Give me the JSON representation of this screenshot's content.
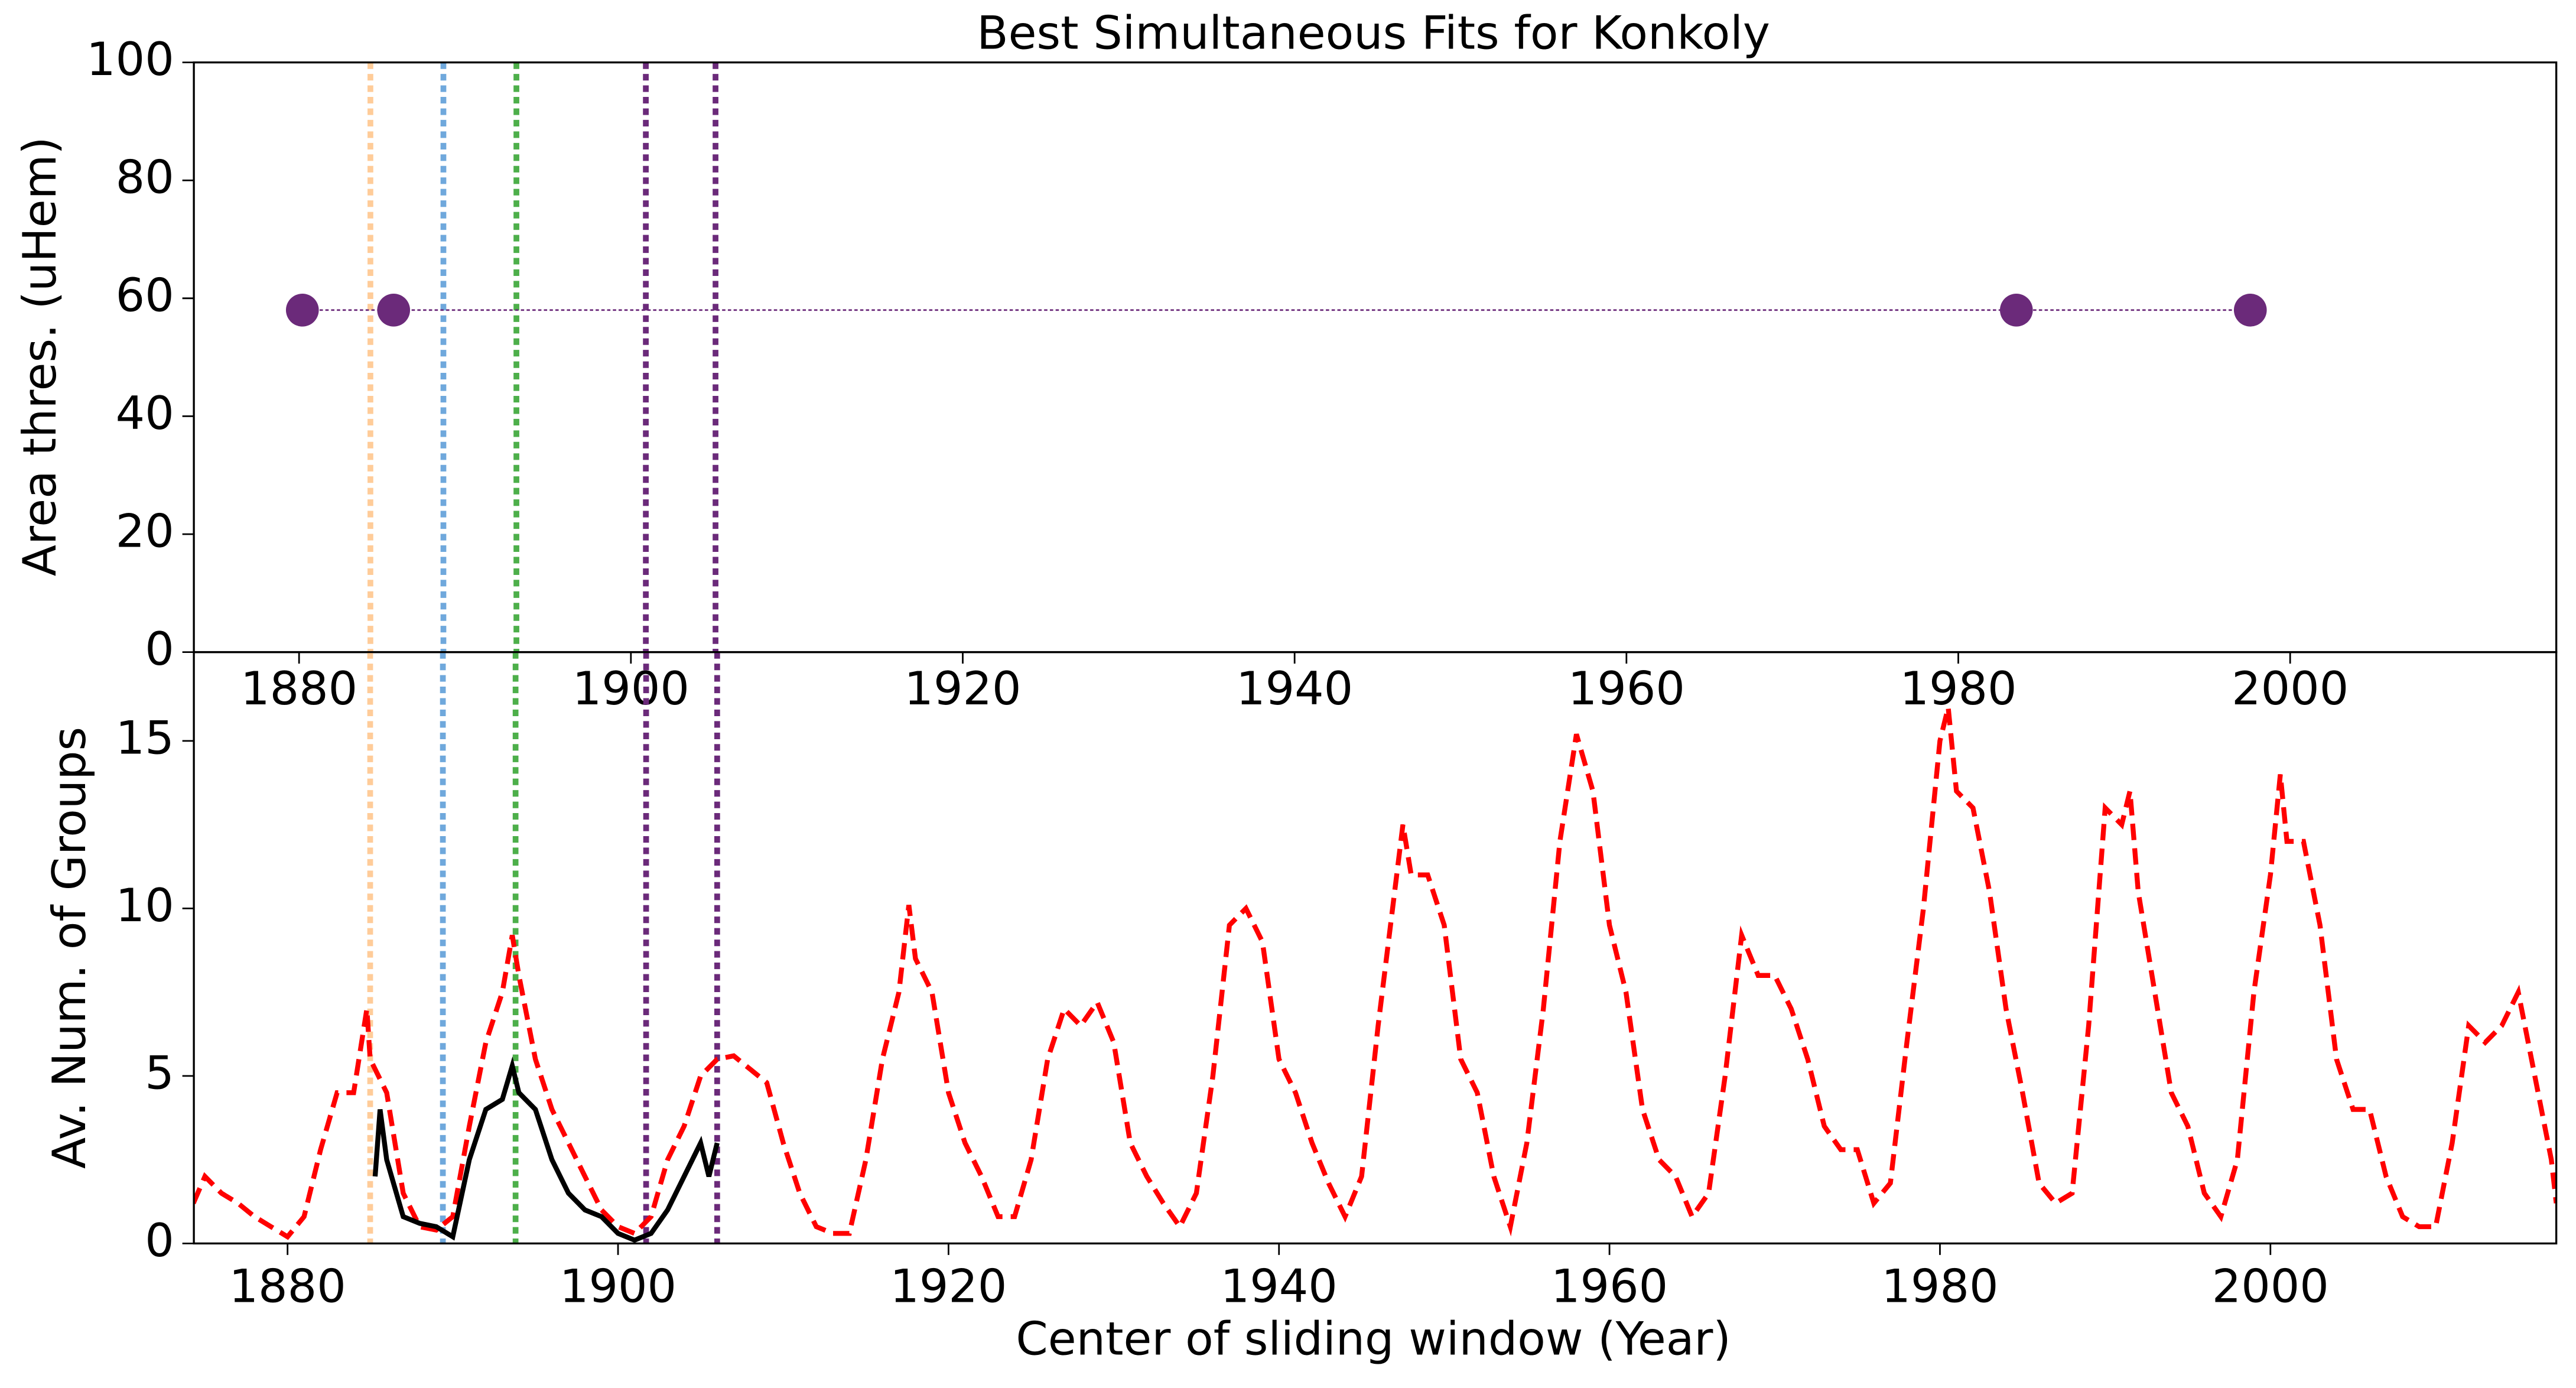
{
  "chart_data": [
    {
      "type": "scatter",
      "title": "Best Simultaneous Fits for Konkoly",
      "ylabel": "Area thres. (uHem)",
      "xlim": [
        1873.66,
        2016.04
      ],
      "ylim": [
        0,
        100
      ],
      "xticks": [
        1880,
        1900,
        1920,
        1940,
        1960,
        1980,
        2000
      ],
      "yticks": [
        0,
        20,
        40,
        60,
        80,
        100
      ],
      "series": [
        {
          "color": "#6b2a7a",
          "x": [
            1880.2,
            1885.7,
            1983.5,
            1997.6
          ],
          "values": [
            58,
            58,
            58,
            58
          ]
        }
      ],
      "vlines": [
        {
          "x": 1884.3,
          "color": "#ffcc99"
        },
        {
          "x": 1888.7,
          "color": "#6fa8dc"
        },
        {
          "x": 1893.1,
          "color": "#4daf4a"
        },
        {
          "x": 1900.9,
          "color": "#6b2a7a"
        },
        {
          "x": 1905.1,
          "color": "#6b2a7a"
        }
      ]
    },
    {
      "type": "line",
      "xlabel": "Center of sliding window (Year)",
      "ylabel": "Av. Num. of Groups",
      "xlim": [
        1874.33,
        2017.3
      ],
      "ylim": [
        0,
        17.65
      ],
      "xticks": [
        1880,
        1900,
        1920,
        1940,
        1960,
        1980,
        2000
      ],
      "yticks": [
        0,
        5,
        10,
        15
      ],
      "series": [
        {
          "color": "#ff0000",
          "dash": "dashed",
          "x": [
            1874.3,
            1875,
            1876,
            1877,
            1878,
            1879,
            1880,
            1881,
            1882,
            1883,
            1884,
            1884.8,
            1885,
            1886,
            1887,
            1888,
            1889,
            1890,
            1891,
            1892,
            1893,
            1893.6,
            1894,
            1895,
            1896,
            1897,
            1898,
            1899,
            1900,
            1901,
            1902,
            1903,
            1904,
            1905,
            1906,
            1907,
            1908,
            1909,
            1910,
            1911,
            1912,
            1913,
            1914,
            1915,
            1916,
            1917,
            1917.6,
            1918,
            1919,
            1920,
            1921,
            1922,
            1923,
            1924,
            1925,
            1926,
            1927,
            1928,
            1929,
            1930,
            1931,
            1932,
            1933,
            1934,
            1935,
            1936,
            1937,
            1938,
            1939,
            1940,
            1941,
            1942,
            1943,
            1944,
            1945,
            1946,
            1947,
            1947.5,
            1948,
            1949,
            1950,
            1951,
            1952,
            1953,
            1954,
            1955,
            1956,
            1957,
            1958,
            1959,
            1960,
            1961,
            1962,
            1963,
            1964,
            1965,
            1966,
            1967,
            1968,
            1969,
            1970,
            1971,
            1972,
            1973,
            1974,
            1975,
            1976,
            1977,
            1978,
            1979,
            1980,
            1980.5,
            1981,
            1982,
            1983,
            1984,
            1985,
            1986,
            1987,
            1988,
            1989,
            1990,
            1991,
            1991.5,
            1992,
            1993,
            1994,
            1995,
            1996,
            1997,
            1998,
            1999,
            2000,
            2000.6,
            2001,
            2002,
            2003,
            2004,
            2005,
            2006,
            2007,
            2008,
            2009,
            2010,
            2011,
            2012,
            2013,
            2014,
            2015,
            2016,
            2017,
            2017.3
          ],
          "values": [
            1.2,
            2.0,
            1.5,
            1.2,
            0.8,
            0.5,
            0.2,
            0.8,
            2.8,
            4.5,
            4.5,
            7.0,
            5.5,
            4.5,
            1.5,
            0.5,
            0.4,
            0.8,
            3.5,
            6.0,
            7.5,
            9.2,
            8.0,
            5.5,
            4.0,
            3.0,
            2.0,
            1.0,
            0.5,
            0.3,
            0.8,
            2.5,
            3.5,
            5.0,
            5.5,
            5.6,
            5.2,
            4.8,
            3.0,
            1.5,
            0.5,
            0.3,
            0.3,
            2.5,
            5.5,
            7.5,
            10.1,
            8.5,
            7.5,
            4.5,
            3.0,
            2.0,
            0.8,
            0.8,
            2.5,
            5.5,
            7.0,
            6.5,
            7.2,
            6.0,
            3.0,
            2.0,
            1.2,
            0.5,
            1.5,
            5.0,
            9.5,
            10.0,
            9.0,
            5.5,
            4.5,
            3.0,
            1.8,
            0.8,
            2.0,
            6.5,
            10.5,
            12.5,
            11.0,
            11.0,
            9.5,
            5.5,
            4.5,
            2.0,
            0.5,
            3.0,
            7.0,
            12.0,
            15.2,
            13.5,
            9.5,
            7.5,
            4.0,
            2.5,
            2.0,
            0.8,
            1.5,
            5.0,
            9.2,
            8.0,
            8.0,
            7.0,
            5.5,
            3.5,
            2.8,
            2.8,
            1.2,
            1.8,
            6.0,
            10.0,
            15.0,
            16.0,
            13.5,
            13.0,
            10.5,
            7.0,
            4.5,
            1.8,
            1.2,
            1.5,
            6.5,
            13.0,
            12.5,
            13.5,
            10.5,
            7.5,
            4.5,
            3.5,
            1.5,
            0.8,
            2.5,
            7.5,
            11.0,
            14.0,
            12.0,
            12.0,
            9.5,
            5.5,
            4.0,
            4.0,
            2.0,
            0.8,
            0.5,
            0.5,
            3.0,
            6.5,
            6.0,
            6.5,
            7.5,
            5.0,
            2.5,
            1.2
          ]
        },
        {
          "color": "#000000",
          "dash": "solid",
          "x": [
            1885.3,
            1885.6,
            1886,
            1887,
            1888,
            1889,
            1890,
            1891,
            1892,
            1893,
            1893.6,
            1894,
            1895,
            1896,
            1897,
            1898,
            1899,
            1900,
            1901,
            1902,
            1903,
            1904,
            1905,
            1905.5,
            1906
          ],
          "values": [
            2.0,
            4.0,
            2.5,
            0.8,
            0.6,
            0.5,
            0.2,
            2.5,
            4.0,
            4.3,
            5.3,
            4.5,
            4.0,
            2.5,
            1.5,
            1.0,
            0.8,
            0.3,
            0.1,
            0.3,
            1.0,
            2.0,
            3.0,
            2.0,
            3.0
          ]
        }
      ],
      "vlines": [
        {
          "x": 1885.0,
          "color": "#ffcc99"
        },
        {
          "x": 1889.4,
          "color": "#6fa8dc"
        },
        {
          "x": 1893.8,
          "color": "#4daf4a"
        },
        {
          "x": 1901.7,
          "color": "#6b2a7a"
        },
        {
          "x": 1906.0,
          "color": "#6b2a7a"
        }
      ]
    }
  ]
}
